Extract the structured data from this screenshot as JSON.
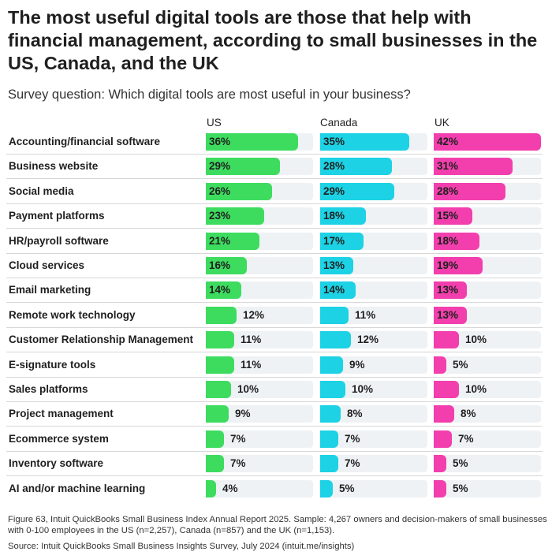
{
  "title": "The most useful digital tools are those that help with financial management, according to small businesses in the US, Canada, and the UK",
  "subtitle": "Survey question: Which digital tools are most useful in your business?",
  "footnote": "Figure 63, Intuit QuickBooks Small Business Index Annual Report 2025. Sample: 4,267 owners and decision-makers of small businesses with 0-100 employees in the US (n=2,257), Canada (n=857) and the UK (n=1,153).",
  "source": "Source: Intuit QuickBooks Small Business Insights Survey, July 2024 (intuit.me/insights)",
  "colors": {
    "US": "#3ddc5f",
    "Canada": "#1cd2e4",
    "UK": "#f23fad",
    "track": "#eff2f5"
  },
  "chart_data": {
    "type": "bar",
    "orientation": "horizontal",
    "xlim": [
      0,
      42
    ],
    "categories": [
      "Accounting/financial software",
      "Business website",
      "Social media",
      "Payment platforms",
      "HR/payroll software",
      "Cloud services",
      "Email marketing",
      "Remote work technology",
      "Customer Relationship Management",
      "E-signature tools",
      "Sales platforms",
      "Project management",
      "Ecommerce system",
      "Inventory software",
      "AI and/or machine learning"
    ],
    "series": [
      {
        "name": "US",
        "values": [
          36,
          29,
          26,
          23,
          21,
          16,
          14,
          12,
          11,
          11,
          10,
          9,
          7,
          7,
          4
        ],
        "labels": [
          "36%",
          "29%",
          "26%",
          "23%",
          "21%",
          "16%",
          "14%",
          "12%",
          "11%",
          "11%",
          "10%",
          "9%",
          "7%",
          "7%",
          "4%"
        ]
      },
      {
        "name": "Canada",
        "values": [
          35,
          28,
          29,
          18,
          17,
          13,
          14,
          11,
          12,
          9,
          10,
          8,
          7,
          7,
          5
        ],
        "labels": [
          "35%",
          "28%",
          "29%",
          "18%",
          "17%",
          "13%",
          "14%",
          "11%",
          "12%",
          "9%",
          "10%",
          "8%",
          "7%",
          "7%",
          "5%"
        ]
      },
      {
        "name": "UK",
        "values": [
          42,
          31,
          28,
          15,
          18,
          19,
          13,
          13,
          10,
          5,
          10,
          8,
          7,
          5,
          5
        ],
        "labels": [
          "42%",
          "31%",
          "28%",
          "15%",
          "18%",
          "19%",
          "13%",
          "13%",
          "10%",
          "5%",
          "10%",
          "8%",
          "7%",
          "5%",
          "5%"
        ]
      }
    ]
  }
}
